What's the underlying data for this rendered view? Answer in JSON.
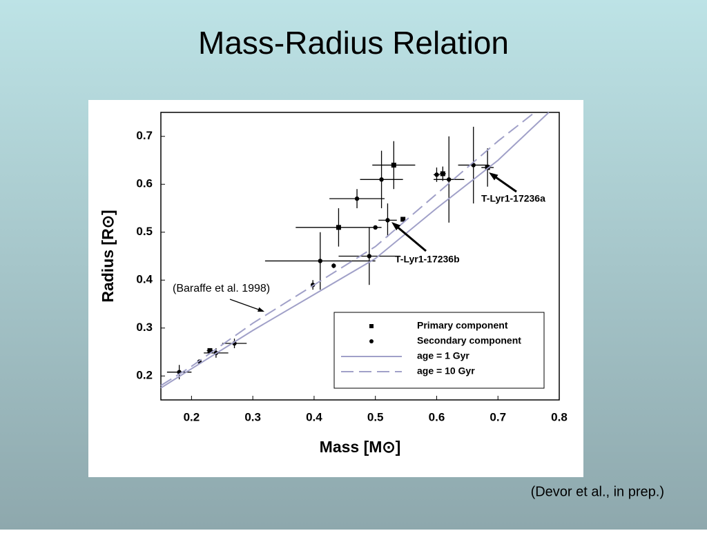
{
  "title": "Mass-Radius Relation",
  "footnote": "(Devor et al., in prep.)",
  "chart_data": {
    "type": "scatter",
    "xlabel": "Mass  [M⊙]",
    "ylabel": "Radius  [R⊙]",
    "xlim": [
      0.15,
      0.8
    ],
    "ylim": [
      0.15,
      0.75
    ],
    "xticks": [
      0.2,
      0.3,
      0.4,
      0.5,
      0.6,
      0.7,
      0.8
    ],
    "yticks": [
      0.2,
      0.3,
      0.4,
      0.5,
      0.6,
      0.7
    ],
    "legend": "lower right",
    "annotations": [
      "(Baraffe et al. 1998)",
      "T-Lyr1-17236a",
      "T-Lyr1-17236b"
    ],
    "series": [
      {
        "name": "Primary component",
        "marker": "square",
        "color": "#000000",
        "x": [
          0.23,
          0.44,
          0.53,
          0.545,
          0.61,
          0.683
        ],
        "values": [
          0.253,
          0.51,
          0.64,
          0.527,
          0.622,
          0.635
        ],
        "xerr": [
          0.005,
          0.07,
          0.035,
          0.003,
          0.005,
          0.01
        ],
        "yerr": [
          0.003,
          0.04,
          0.05,
          0.005,
          0.015,
          0.04
        ]
      },
      {
        "name": "Secondary component",
        "marker": "circle",
        "color": "#000000",
        "x": [
          0.18,
          0.213,
          0.24,
          0.27,
          0.398,
          0.41,
          0.432,
          0.47,
          0.49,
          0.5,
          0.51,
          0.52,
          0.6,
          0.62,
          0.66
        ],
        "values": [
          0.208,
          0.23,
          0.248,
          0.268,
          0.39,
          0.44,
          0.43,
          0.57,
          0.45,
          0.51,
          0.61,
          0.525,
          0.62,
          0.61,
          0.64
        ],
        "xerr": [
          0.02,
          0.003,
          0.02,
          0.02,
          0.003,
          0.09,
          0.003,
          0.045,
          0.05,
          0.003,
          0.035,
          0.015,
          0.005,
          0.025,
          0.025
        ],
        "yerr": [
          0.015,
          0.003,
          0.01,
          0.01,
          0.01,
          0.06,
          0.005,
          0.02,
          0.06,
          0.003,
          0.06,
          0.035,
          0.015,
          0.09,
          0.08
        ]
      },
      {
        "name": "age = 1 Gyr",
        "line": "solid",
        "color": "#a0a0c8",
        "x": [
          0.15,
          0.2,
          0.3,
          0.4,
          0.5,
          0.6,
          0.7,
          0.783
        ],
        "values": [
          0.175,
          0.215,
          0.295,
          0.37,
          0.445,
          0.55,
          0.65,
          0.75
        ]
      },
      {
        "name": "age = 10 Gyr",
        "line": "dashed",
        "color": "#a0a0c8",
        "x": [
          0.15,
          0.2,
          0.3,
          0.4,
          0.5,
          0.6,
          0.7,
          0.76
        ],
        "values": [
          0.18,
          0.22,
          0.31,
          0.39,
          0.47,
          0.58,
          0.69,
          0.75
        ]
      }
    ]
  }
}
